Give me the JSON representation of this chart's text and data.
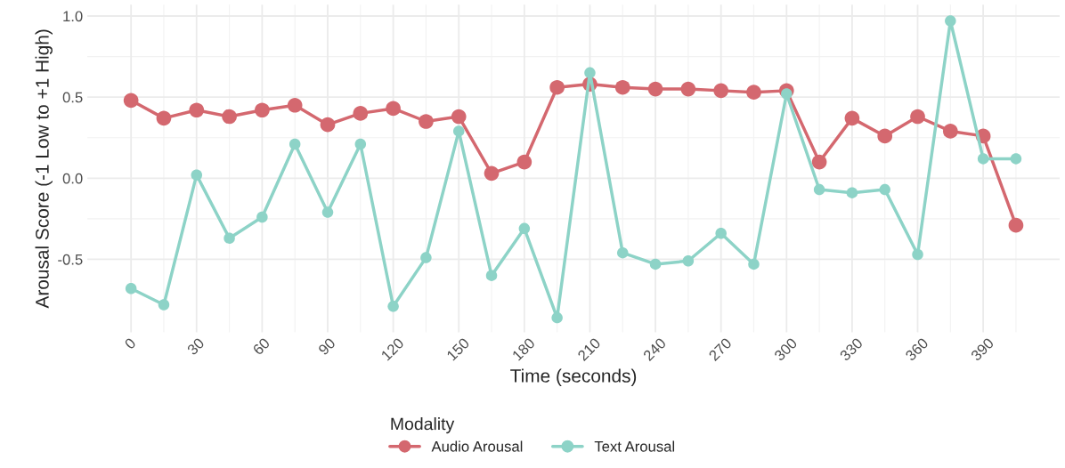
{
  "chart_data": {
    "type": "line",
    "xlabel": "Time (seconds)",
    "ylabel": "Arousal Score (-1 Low to +1 High)",
    "legend_title": "Modality",
    "x": [
      0,
      15,
      30,
      45,
      60,
      75,
      90,
      105,
      120,
      135,
      150,
      165,
      180,
      195,
      210,
      225,
      240,
      255,
      270,
      285,
      300,
      315,
      330,
      345,
      360,
      375,
      390,
      405
    ],
    "series": [
      {
        "name": "Audio Arousal",
        "color": "#d4686f",
        "values": [
          0.48,
          0.37,
          0.42,
          0.38,
          0.42,
          0.45,
          0.33,
          0.4,
          0.43,
          0.35,
          0.38,
          0.03,
          0.1,
          0.56,
          0.58,
          0.56,
          0.55,
          0.55,
          0.54,
          0.53,
          0.54,
          0.1,
          0.37,
          0.26,
          0.38,
          0.29,
          0.26,
          -0.29
        ]
      },
      {
        "name": "Text Arousal",
        "color": "#8dd3c7",
        "values": [
          -0.68,
          -0.78,
          0.02,
          -0.37,
          -0.24,
          0.21,
          -0.21,
          0.21,
          -0.79,
          -0.49,
          0.29,
          -0.6,
          -0.31,
          -0.86,
          0.65,
          -0.46,
          -0.53,
          -0.51,
          -0.34,
          -0.53,
          0.52,
          -0.07,
          -0.09,
          -0.07,
          -0.47,
          0.97,
          0.12,
          0.12
        ]
      }
    ],
    "xlim": [
      -20,
      425
    ],
    "ylim": [
      -0.95,
      1.07
    ],
    "xticks": [
      0,
      30,
      60,
      90,
      120,
      150,
      180,
      210,
      240,
      270,
      300,
      330,
      360,
      390
    ],
    "yticks": [
      {
        "value": -0.5,
        "label": "-0.5"
      },
      {
        "value": 0,
        "label": "0.0"
      },
      {
        "value": 0.5,
        "label": "0.5"
      },
      {
        "value": 1.0,
        "label": "1.0"
      }
    ],
    "grid": true,
    "legend": "bottom",
    "marker": "circle",
    "line_style": "solid"
  }
}
